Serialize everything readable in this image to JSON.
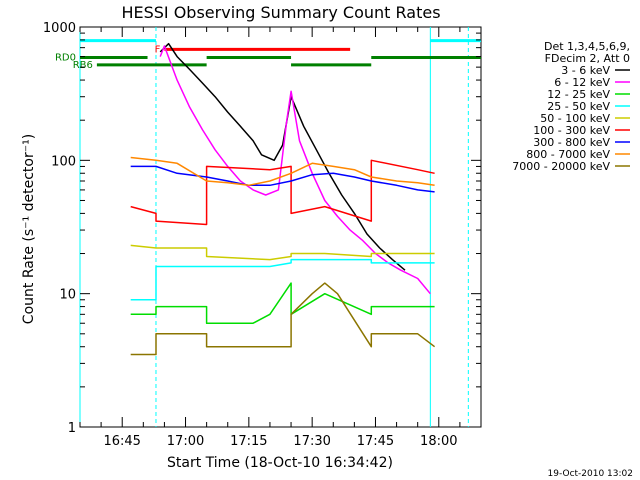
{
  "chart_data": {
    "type": "line",
    "title": "HESSI Observing Summary Count Rates",
    "xlabel": "Start Time (18-Oct-10 16:34:42)",
    "ylabel": "Count Rate (s⁻¹ detector⁻¹)",
    "y_scale": "log",
    "ylim": [
      1,
      1000
    ],
    "y_ticks": [
      {
        "value": 1,
        "label": "1"
      },
      {
        "value": 10,
        "label": "10"
      },
      {
        "value": 100,
        "label": "100"
      },
      {
        "value": 1000,
        "label": "1000"
      }
    ],
    "xlim": [
      "16:35",
      "18:10"
    ],
    "x_ticks": [
      {
        "value": "16:45",
        "label": "16:45"
      },
      {
        "value": "17:00",
        "label": "17:00"
      },
      {
        "value": "17:15",
        "label": "17:15"
      },
      {
        "value": "17:30",
        "label": "17:30"
      },
      {
        "value": "17:45",
        "label": "17:45"
      },
      {
        "value": "18:00",
        "label": "18:00"
      }
    ],
    "legend_header": [
      "Det 1,3,4,5,6,9,",
      "FDecim 2, Att 0"
    ],
    "legend_position": "right",
    "footer_timestamp": "19-Oct-2010 13:02",
    "series": [
      {
        "name": "3 - 6 keV",
        "color": "#000000",
        "x": [
          "16:54",
          "16:56",
          "16:58",
          "17:01",
          "17:04",
          "17:07",
          "17:10",
          "17:13",
          "17:16",
          "17:18",
          "17:21",
          "17:23",
          "17:25",
          "17:28",
          "17:31",
          "17:34",
          "17:37",
          "17:40",
          "17:43",
          "17:46",
          "17:49",
          "17:52"
        ],
        "values": [
          650,
          750,
          600,
          480,
          380,
          300,
          230,
          180,
          140,
          110,
          100,
          130,
          300,
          180,
          120,
          80,
          55,
          40,
          28,
          22,
          18,
          15
        ]
      },
      {
        "name": "6 - 12 keV",
        "color": "#ff00ff",
        "x": [
          "16:54",
          "16:55",
          "16:58",
          "17:01",
          "17:04",
          "17:07",
          "17:10",
          "17:13",
          "17:16",
          "17:19",
          "17:22",
          "17:24",
          "17:25",
          "17:27",
          "17:30",
          "17:33",
          "17:36",
          "17:39",
          "17:42",
          "17:45",
          "17:48",
          "17:51",
          "17:55",
          "17:58"
        ],
        "values": [
          600,
          720,
          400,
          250,
          170,
          120,
          90,
          70,
          60,
          55,
          60,
          200,
          330,
          140,
          80,
          50,
          38,
          30,
          25,
          20,
          17,
          15,
          13,
          10
        ]
      },
      {
        "name": "12 - 25 keV",
        "color": "#00dd00",
        "x": [
          "16:47",
          "16:53",
          "16:53",
          "17:05",
          "17:05",
          "17:16",
          "17:20",
          "17:25",
          "17:25",
          "17:33",
          "17:44",
          "17:44",
          "17:55",
          "17:59"
        ],
        "values": [
          7,
          7,
          8,
          8,
          6,
          6,
          7,
          12,
          7,
          10,
          7,
          8,
          8,
          8
        ]
      },
      {
        "name": "25 - 50 keV",
        "color": "#00ffff",
        "x": [
          "16:47",
          "16:53",
          "16:53",
          "17:05",
          "17:05",
          "17:20",
          "17:25",
          "17:25",
          "17:44",
          "17:44",
          "17:55",
          "17:59"
        ],
        "values": [
          9,
          9,
          16,
          16,
          16,
          16,
          17,
          18,
          18,
          17,
          17,
          17
        ]
      },
      {
        "name": "50 - 100 keV",
        "color": "#cccc00",
        "x": [
          "16:47",
          "16:53",
          "16:53",
          "17:05",
          "17:05",
          "17:20",
          "17:25",
          "17:25",
          "17:33",
          "17:44",
          "17:44",
          "17:55",
          "17:59"
        ],
        "values": [
          23,
          22,
          22,
          22,
          19,
          18,
          19,
          20,
          20,
          19,
          20,
          20,
          20
        ]
      },
      {
        "name": "100 - 300 keV",
        "color": "#ff0000",
        "x": [
          "16:47",
          "16:53",
          "16:53",
          "17:05",
          "17:05",
          "17:20",
          "17:25",
          "17:25",
          "17:33",
          "17:44",
          "17:44",
          "17:55",
          "17:59"
        ],
        "values": [
          45,
          40,
          35,
          33,
          90,
          85,
          90,
          40,
          45,
          35,
          100,
          85,
          80
        ]
      },
      {
        "name": "300 - 800 keV",
        "color": "#0000ff",
        "x": [
          "16:47",
          "16:53",
          "16:58",
          "17:05",
          "17:10",
          "17:15",
          "17:20",
          "17:25",
          "17:30",
          "17:35",
          "17:40",
          "17:44",
          "17:50",
          "17:55",
          "17:59"
        ],
        "values": [
          90,
          90,
          80,
          75,
          70,
          65,
          65,
          70,
          78,
          80,
          75,
          70,
          65,
          60,
          58
        ]
      },
      {
        "name": "800 - 7000 keV",
        "color": "#ff8800",
        "x": [
          "16:47",
          "16:53",
          "16:58",
          "17:05",
          "17:10",
          "17:15",
          "17:20",
          "17:25",
          "17:30",
          "17:35",
          "17:40",
          "17:44",
          "17:50",
          "17:55",
          "17:59"
        ],
        "values": [
          105,
          100,
          95,
          70,
          68,
          65,
          70,
          80,
          95,
          90,
          85,
          75,
          70,
          68,
          65
        ]
      },
      {
        "name": "7000 - 20000 keV",
        "color": "#8b7500",
        "x": [
          "16:47",
          "16:53",
          "16:53",
          "17:05",
          "17:05",
          "17:20",
          "17:25",
          "17:25",
          "17:30",
          "17:33",
          "17:36",
          "17:44",
          "17:44",
          "17:55",
          "17:59"
        ],
        "values": [
          3.5,
          3.5,
          5,
          5,
          4,
          4,
          4,
          7,
          10,
          12,
          10,
          4,
          5,
          5,
          4
        ]
      }
    ],
    "flag_bars": [
      {
        "label": "F",
        "color": "#ff0000",
        "start": "16:55",
        "end": "17:39",
        "level": 680
      },
      {
        "label": "RD0",
        "color": "#008000",
        "start": "16:35",
        "end": "16:51",
        "level": 590
      },
      {
        "label": "",
        "color": "#008000",
        "start": "17:05",
        "end": "17:25",
        "level": 590
      },
      {
        "label": "",
        "color": "#008000",
        "start": "17:44",
        "end": "18:10",
        "level": 590
      },
      {
        "label": "RB6",
        "color": "#008000",
        "start": "16:39",
        "end": "17:05",
        "level": 520
      },
      {
        "label": "",
        "color": "#008000",
        "start": "17:25",
        "end": "17:44",
        "level": 520
      },
      {
        "label": "",
        "color": "#00ffff",
        "start": "16:35",
        "end": "16:53",
        "level": 790
      },
      {
        "label": "",
        "color": "#00ffff",
        "start": "17:58",
        "end": "18:10",
        "level": 790
      }
    ],
    "vertical_markers": [
      {
        "color": "#00ffff",
        "style": "solid",
        "time": "16:35"
      },
      {
        "color": "#00ffff",
        "style": "dashed",
        "time": "16:53"
      },
      {
        "color": "#00ffff",
        "style": "solid",
        "time": "17:58"
      },
      {
        "color": "#00ffff",
        "style": "dashed",
        "time": "18:07"
      }
    ]
  }
}
